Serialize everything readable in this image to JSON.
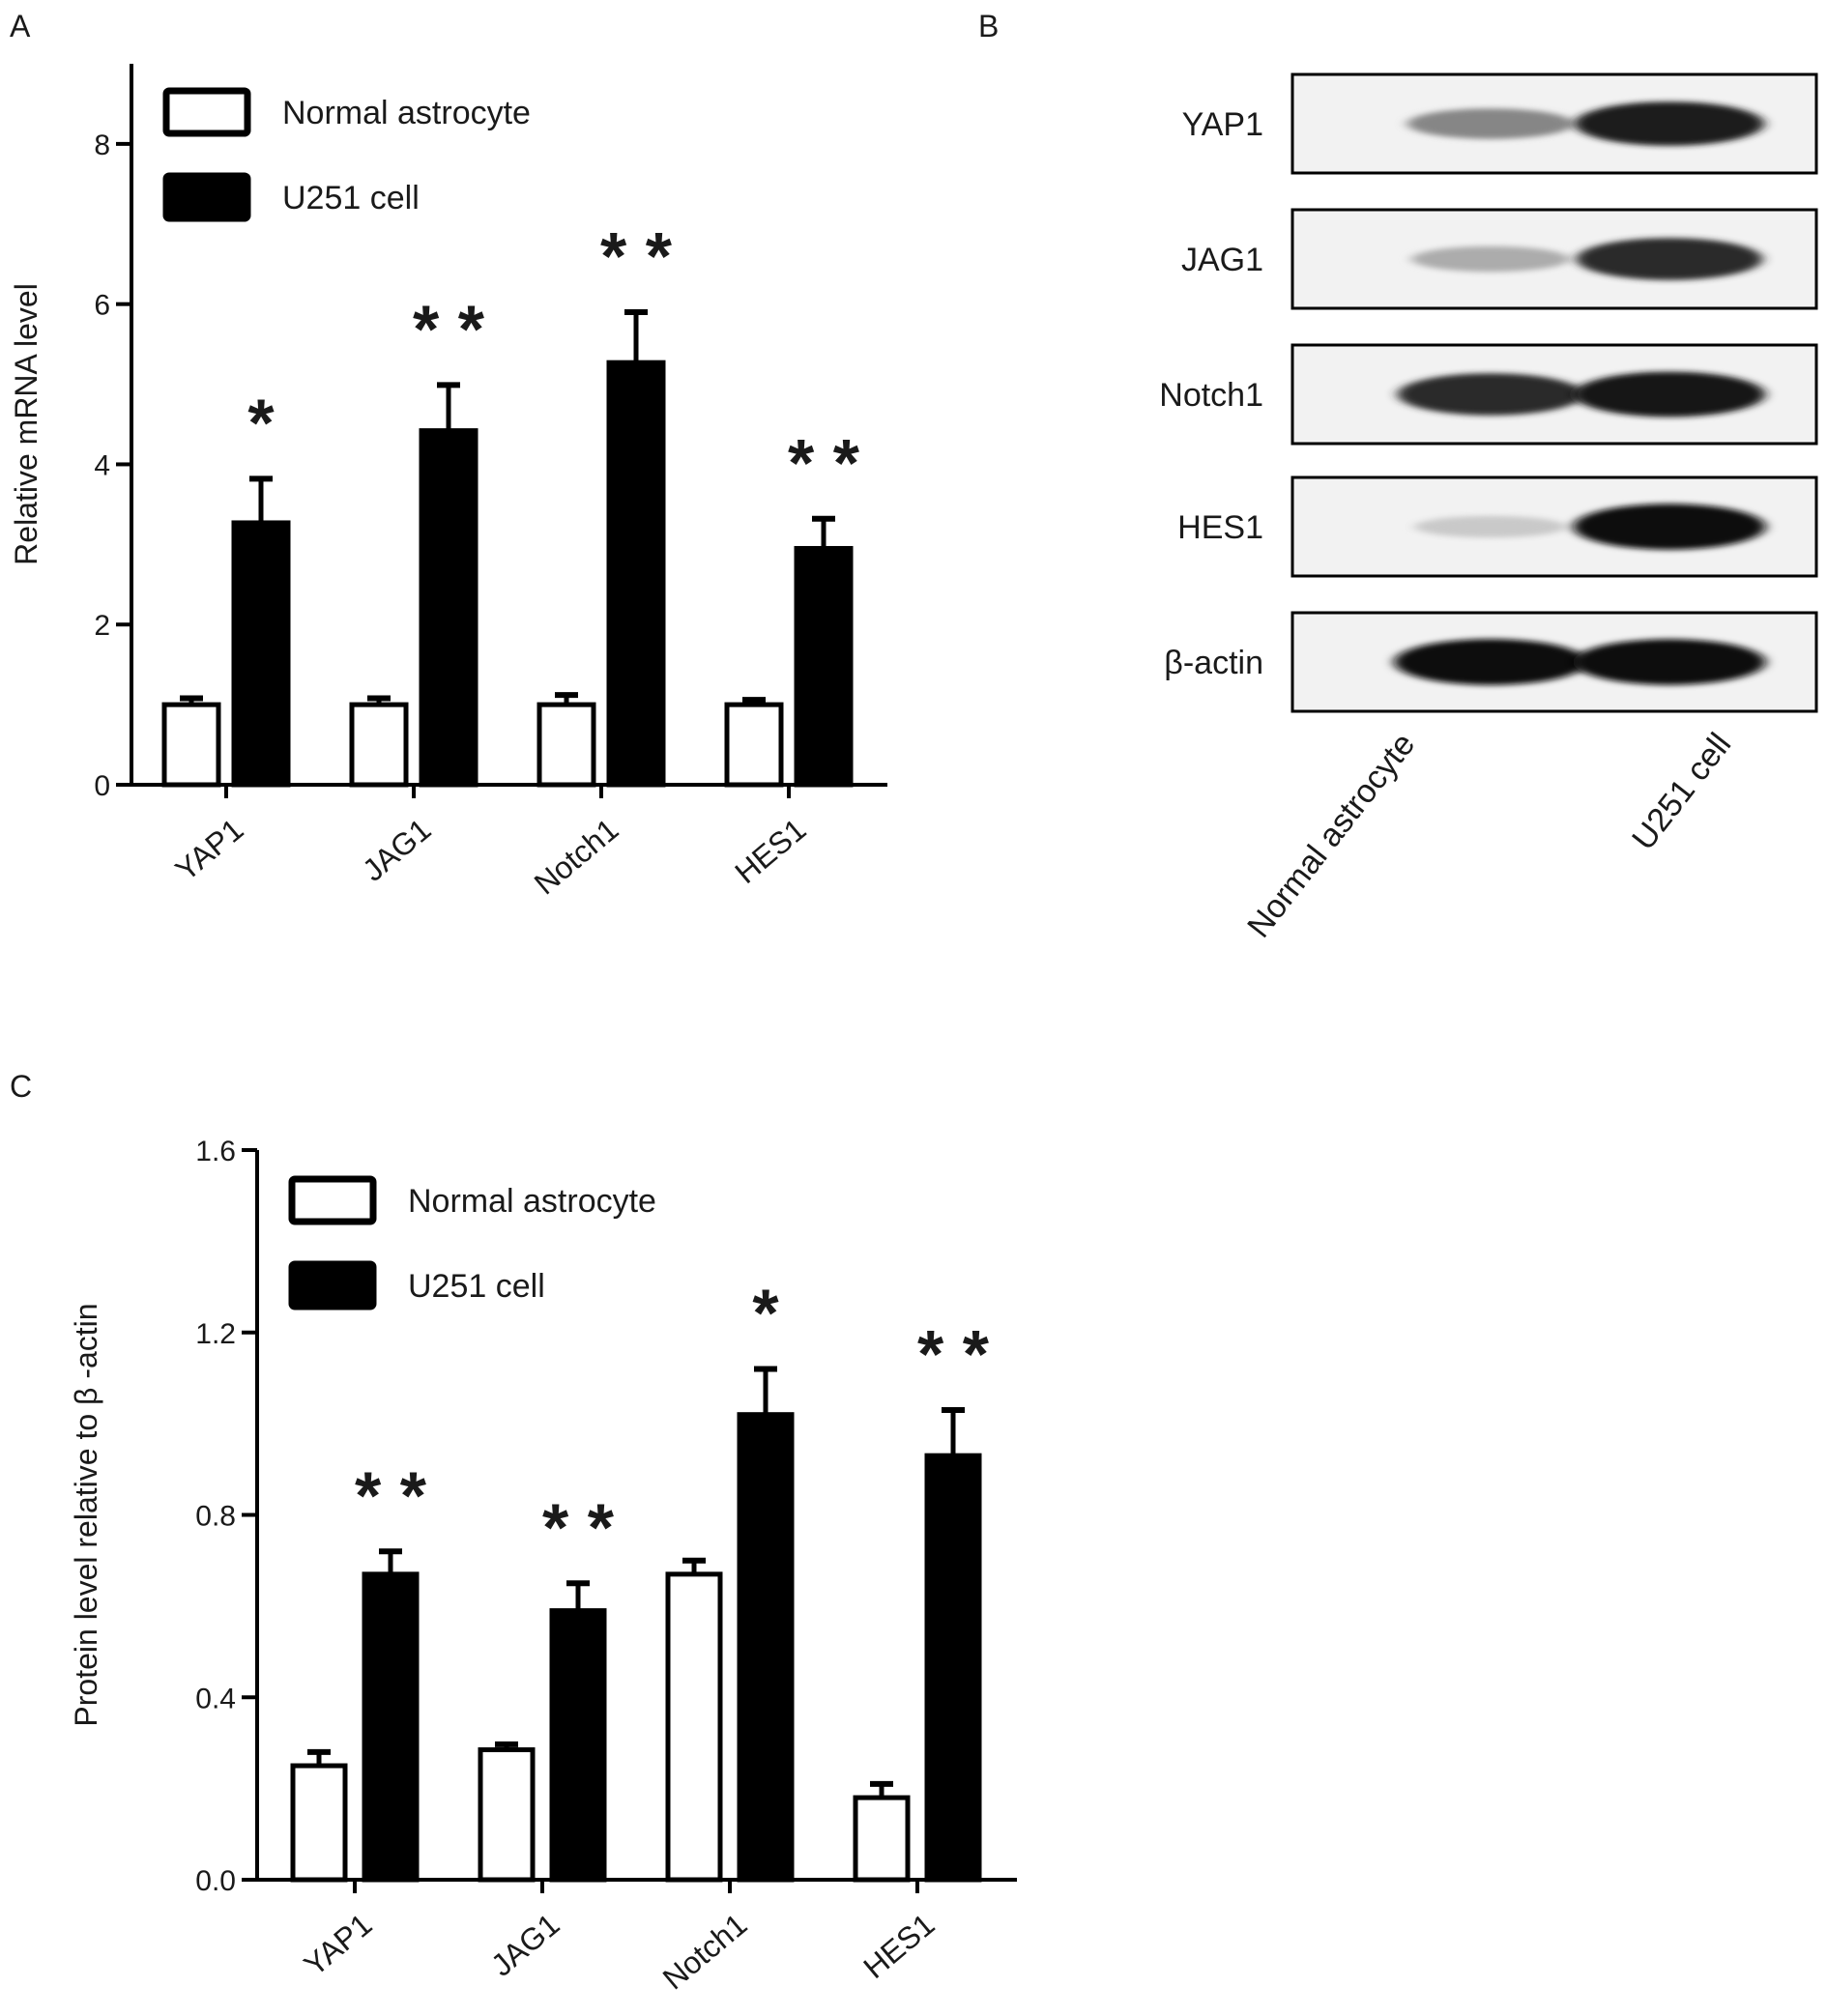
{
  "panels": {
    "a": {
      "letter": "A"
    },
    "b": {
      "letter": "B"
    },
    "c": {
      "letter": "C"
    }
  },
  "chart_data": [
    {
      "panel": "A",
      "type": "bar",
      "ylabel": "Relative mRNA level",
      "ylim": [
        0,
        9
      ],
      "yticks": [
        0,
        2,
        4,
        6,
        8
      ],
      "grid": false,
      "legend_placement": "top-left",
      "categories": [
        "YAP1",
        "JAG1",
        "Notch1",
        "HES1"
      ],
      "series": [
        {
          "name": "Normal astrocyte",
          "color": "#ffffff",
          "values": [
            1.0,
            1.0,
            1.0,
            1.0
          ],
          "errors": [
            0.08,
            0.08,
            0.12,
            0.06
          ]
        },
        {
          "name": "U251 cell",
          "color": "#000000",
          "values": [
            3.27,
            4.42,
            5.27,
            2.95
          ],
          "errors": [
            0.55,
            0.57,
            0.63,
            0.37
          ]
        }
      ],
      "significance": [
        "*",
        "* *",
        "* *",
        "* *"
      ]
    },
    {
      "panel": "C",
      "type": "bar",
      "ylabel": "Protein level relative to β -actin",
      "ylim": [
        0,
        1.6
      ],
      "yticks": [
        "0.0",
        "0.4",
        "0.8",
        "1.2",
        "1.6"
      ],
      "grid": false,
      "legend_placement": "top-left",
      "categories": [
        "YAP1",
        "JAG1",
        "Notch1",
        "HES1"
      ],
      "series": [
        {
          "name": "Normal astrocyte",
          "color": "#ffffff",
          "values": [
            0.25,
            0.285,
            0.67,
            0.18
          ],
          "errors": [
            0.03,
            0.012,
            0.03,
            0.03
          ]
        },
        {
          "name": "U251 cell",
          "color": "#000000",
          "values": [
            0.67,
            0.59,
            1.02,
            0.93
          ],
          "errors": [
            0.05,
            0.06,
            0.1,
            0.1
          ]
        }
      ],
      "significance": [
        "* *",
        "* *",
        "*",
        "* *"
      ]
    }
  ],
  "blot": {
    "rows": [
      "YAP1",
      "JAG1",
      "Notch1",
      "HES1",
      "β-actin"
    ],
    "columns": [
      "Normal astrocyte",
      "U251 cell"
    ],
    "intensity": [
      [
        0.45,
        0.92
      ],
      [
        0.28,
        0.85
      ],
      [
        0.85,
        0.96
      ],
      [
        0.15,
        0.98
      ],
      [
        0.99,
        0.98
      ]
    ]
  }
}
